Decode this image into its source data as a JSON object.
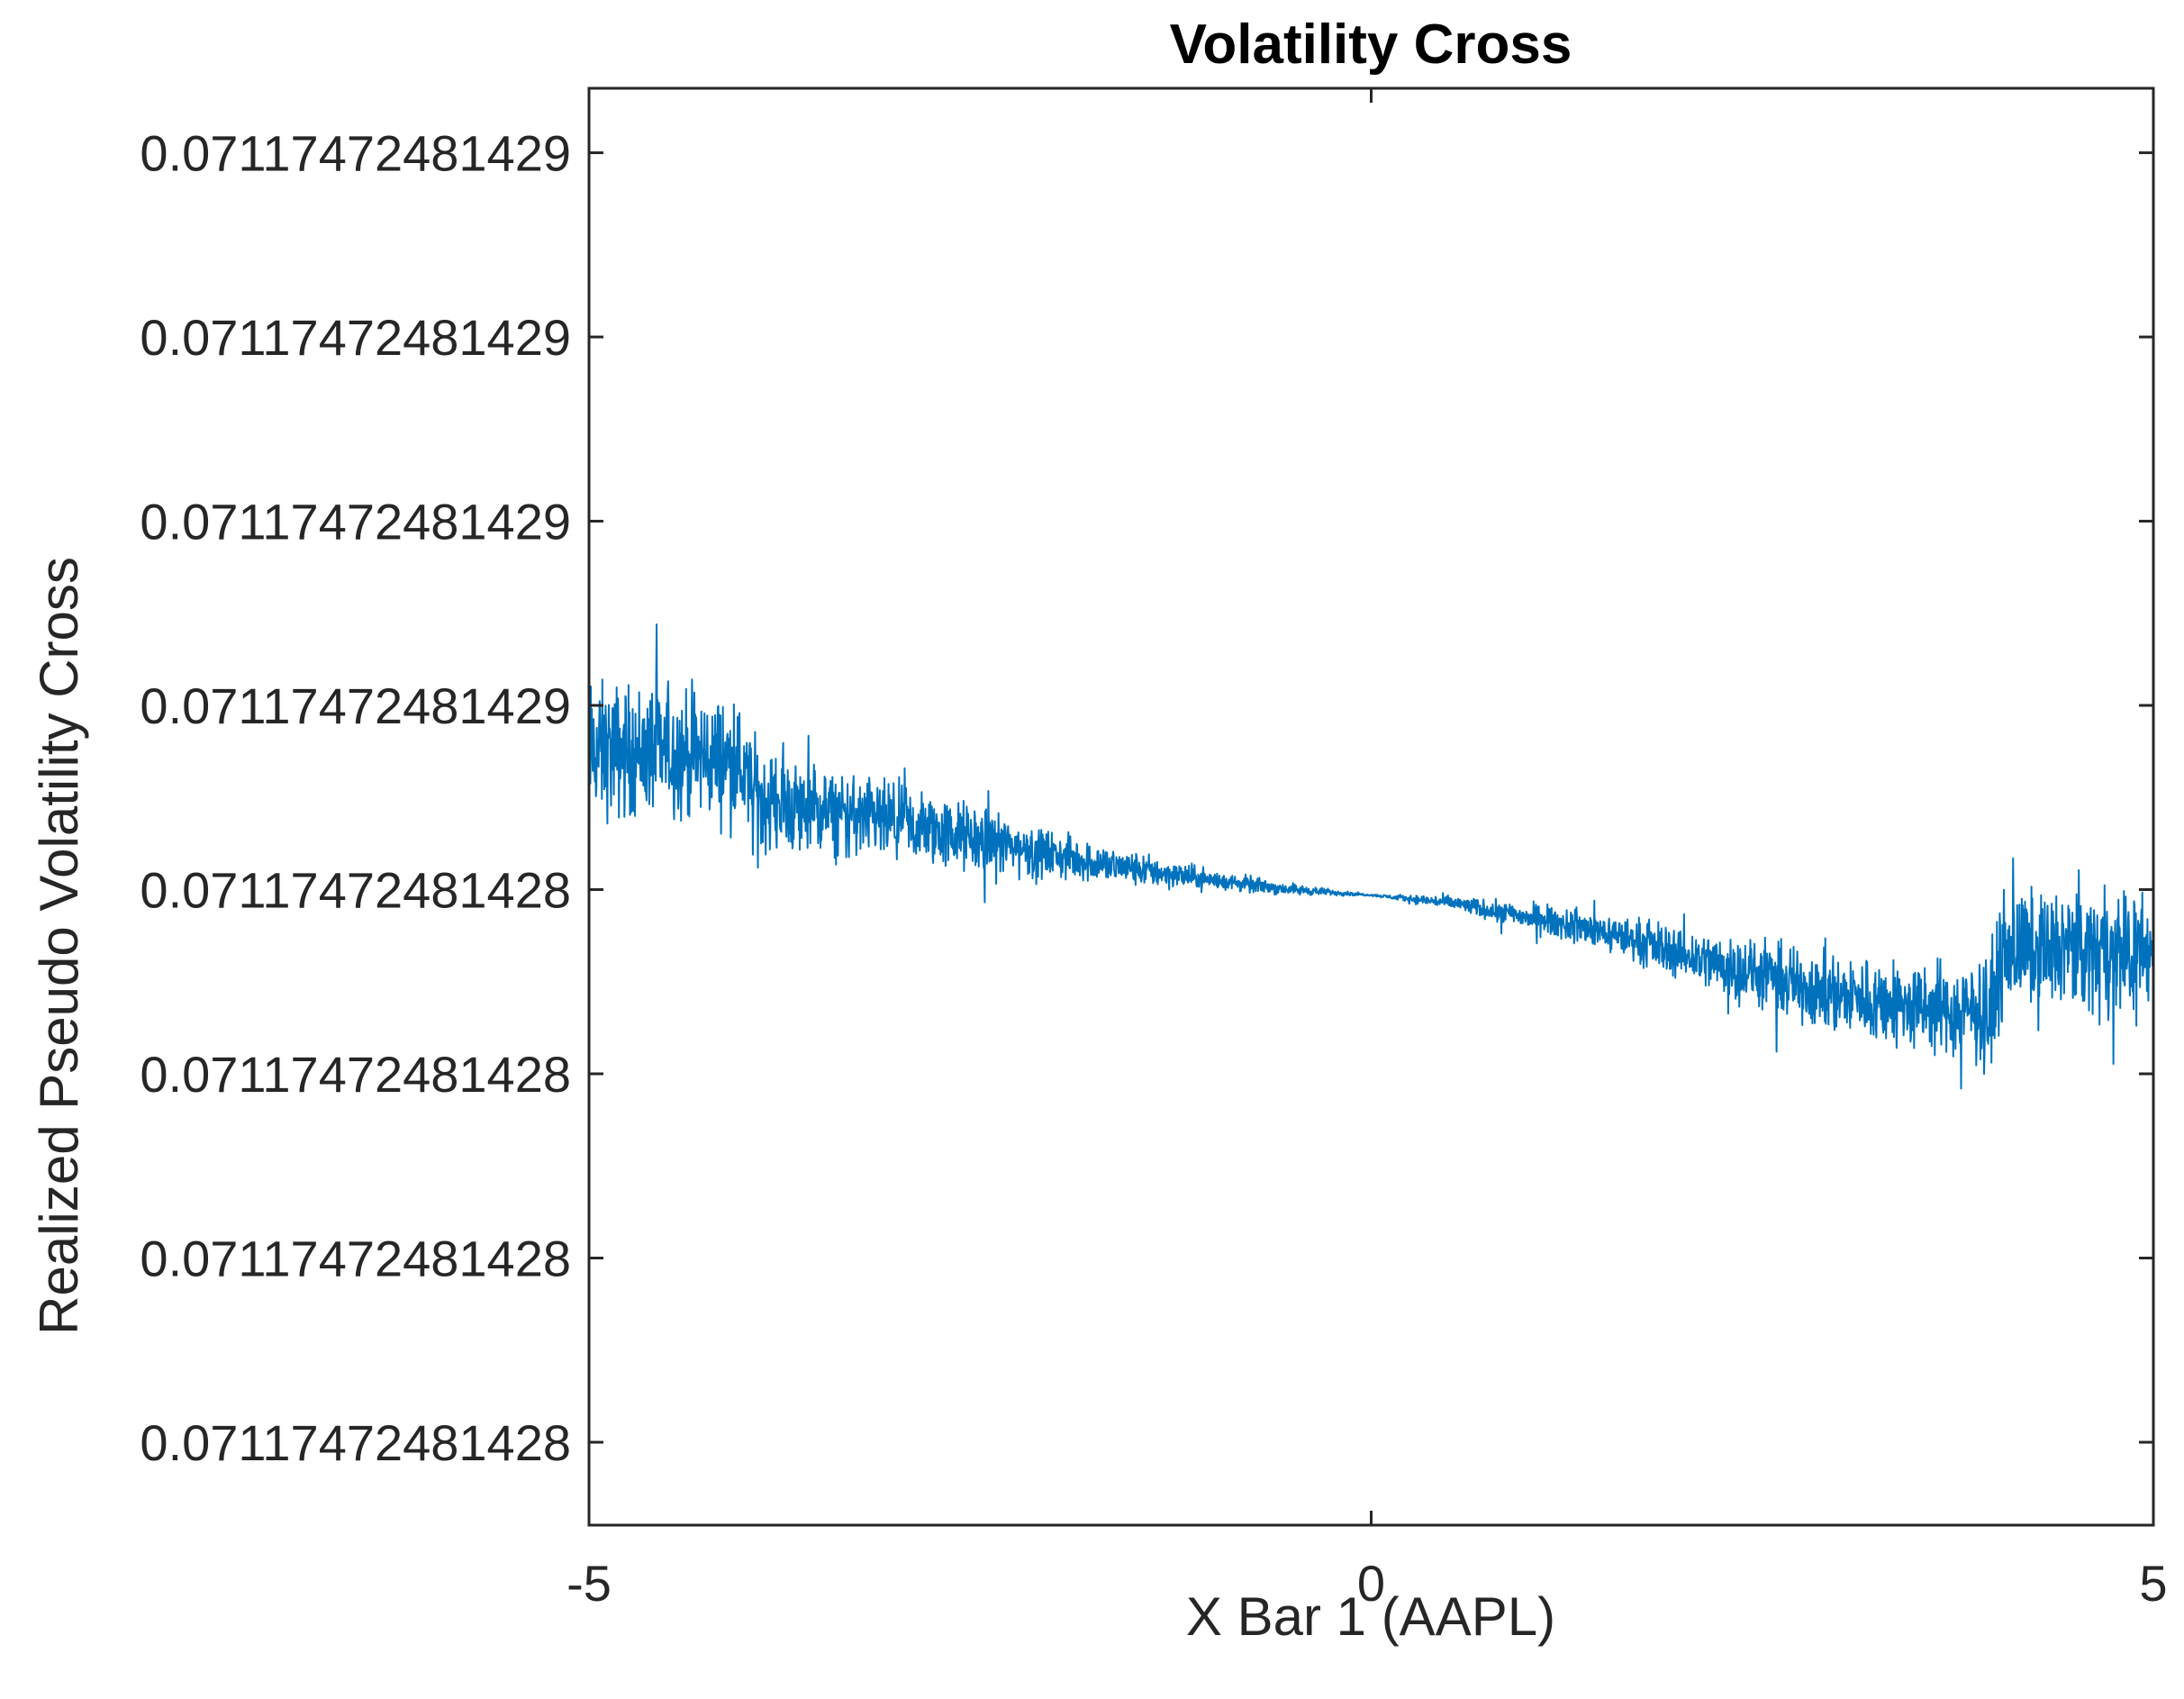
{
  "chart_data": {
    "type": "line",
    "title": "Volatility Cross",
    "xlabel": "X Bar 1 (AAPL)",
    "ylabel": "Realized Pseudo Volatility Cross",
    "xlim": [
      -5,
      5
    ],
    "ylim": [
      0,
      7.8
    ],
    "x_ticks": [
      {
        "value": -5,
        "label": "-5"
      },
      {
        "value": 0,
        "label": "0"
      },
      {
        "value": 5,
        "label": "5"
      }
    ],
    "y_ticks": [
      {
        "value": 0.45,
        "label": "0.07117472481428"
      },
      {
        "value": 1.45,
        "label": "0.07117472481428"
      },
      {
        "value": 2.45,
        "label": "0.07117472481428"
      },
      {
        "value": 3.45,
        "label": "0.07117472481428"
      },
      {
        "value": 4.45,
        "label": "0.07117472481429"
      },
      {
        "value": 5.45,
        "label": "0.07117472481429"
      },
      {
        "value": 6.45,
        "label": "0.07117472481429"
      },
      {
        "value": 7.45,
        "label": "0.07117472481429"
      }
    ],
    "y_note": "Y positions use a relative scale where each tick step is 1 unit; tick labels show the rounded absolute values.",
    "grid": false,
    "series": [
      {
        "name": "Volatility Cross",
        "color": "#0072BD",
        "x": [
          -5.0,
          -4.5,
          -4.05,
          -3.95,
          -3.5,
          -3.0,
          -2.5,
          -2.0,
          -1.5,
          -1.0,
          -0.5,
          0.0,
          0.5,
          1.0,
          1.5,
          2.0,
          2.5,
          3.0,
          3.5,
          3.95,
          4.05,
          4.5,
          5.0
        ],
        "center": [
          4.2,
          4.2,
          4.15,
          3.95,
          3.87,
          3.8,
          3.72,
          3.63,
          3.56,
          3.5,
          3.45,
          3.42,
          3.38,
          3.3,
          3.22,
          3.1,
          2.98,
          2.88,
          2.8,
          2.78,
          3.12,
          3.12,
          3.12
        ],
        "spread": [
          0.48,
          0.46,
          0.42,
          0.4,
          0.3,
          0.28,
          0.24,
          0.16,
          0.12,
          0.07,
          0.04,
          0.005,
          0.05,
          0.09,
          0.13,
          0.19,
          0.24,
          0.28,
          0.32,
          0.35,
          0.42,
          0.42,
          0.42
        ]
      }
    ]
  }
}
